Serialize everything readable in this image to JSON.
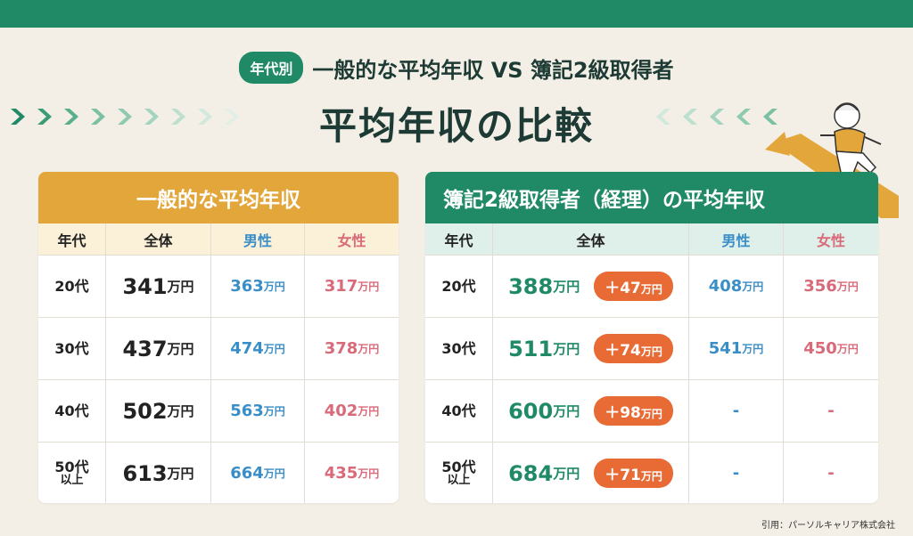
{
  "header": {
    "tag": "年代別",
    "subtitle": "一般的な平均年収 VS 簿記2級取得者",
    "title": "平均年収の比較"
  },
  "colors": {
    "green": "#1f8a65",
    "orange": "#e3a63a",
    "male": "#3a8ec8",
    "female": "#d96a7a",
    "badge": "#e86a34"
  },
  "left_table": {
    "title": "一般的な平均年収",
    "columns": [
      "年代",
      "全体",
      "男性",
      "女性"
    ],
    "rows": [
      {
        "age": "20代",
        "age_sub": "",
        "total": "341",
        "male": "363",
        "female": "317"
      },
      {
        "age": "30代",
        "age_sub": "",
        "total": "437",
        "male": "474",
        "female": "378"
      },
      {
        "age": "40代",
        "age_sub": "",
        "total": "502",
        "male": "563",
        "female": "402"
      },
      {
        "age": "50代",
        "age_sub": "以上",
        "total": "613",
        "male": "664",
        "female": "435"
      }
    ]
  },
  "right_table": {
    "title": "簿記2級取得者（経理）の平均年収",
    "columns": [
      "年代",
      "全体",
      "男性",
      "女性"
    ],
    "rows": [
      {
        "age": "20代",
        "age_sub": "",
        "total": "388",
        "diff": "＋47",
        "male": "408",
        "female": "356"
      },
      {
        "age": "30代",
        "age_sub": "",
        "total": "511",
        "diff": "＋74",
        "male": "541",
        "female": "450"
      },
      {
        "age": "40代",
        "age_sub": "",
        "total": "600",
        "diff": "＋98",
        "male": "-",
        "female": "-"
      },
      {
        "age": "50代",
        "age_sub": "以上",
        "total": "684",
        "diff": "＋71",
        "male": "-",
        "female": "-"
      }
    ]
  },
  "unit": "万円",
  "source": "引用：パーソルキャリア株式会社",
  "icons": [
    "chevron-right-icon",
    "chevron-left-icon",
    "runner-illustration"
  ]
}
